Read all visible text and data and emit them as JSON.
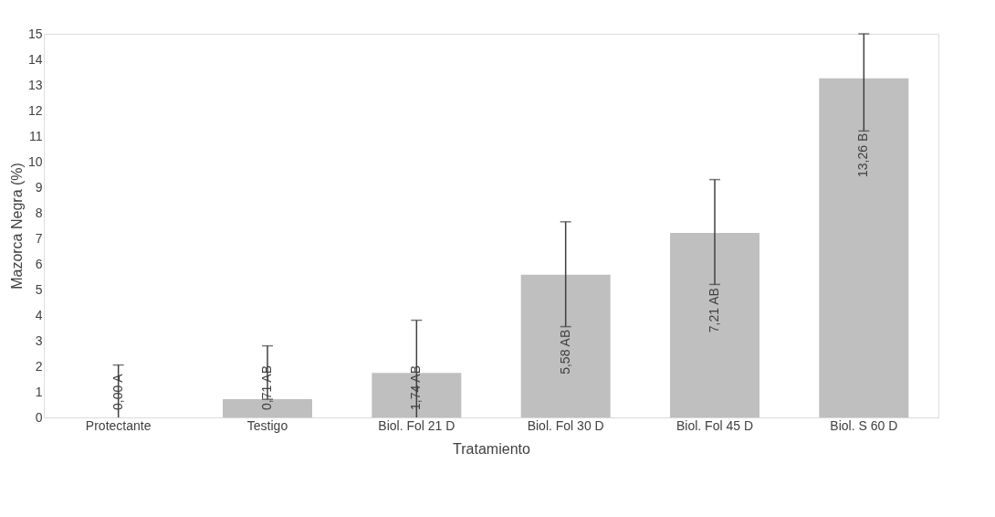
{
  "chart_data": {
    "type": "bar",
    "xlabel": "Tratamiento",
    "ylabel": "Mazorca Negra (%)",
    "categories": [
      "Protectante",
      "Testigo",
      "Biol. Fol 21 D",
      "Biol. Fol 30 D",
      "Biol. Fol 45 D",
      "Biol. S 60 D"
    ],
    "values": [
      0.0,
      0.71,
      1.74,
      5.58,
      7.21,
      13.26
    ],
    "errors": [
      [
        0,
        2.05
      ],
      [
        0.71,
        2.8
      ],
      [
        0,
        3.8
      ],
      [
        3.55,
        7.65
      ],
      [
        5.2,
        9.3
      ],
      [
        11.2,
        15.0
      ]
    ],
    "value_labels": [
      "0,00  A",
      "0,71  AB",
      "1,74  AB",
      "5,58  AB",
      "7,21  AB",
      "13,26 B"
    ],
    "color": "#bfbfbf",
    "ylim": [
      0,
      15
    ],
    "yticks": [
      0,
      1,
      2,
      3,
      4,
      5,
      6,
      7,
      8,
      9,
      10,
      11,
      12,
      13,
      14,
      15
    ],
    "grid": false
  }
}
